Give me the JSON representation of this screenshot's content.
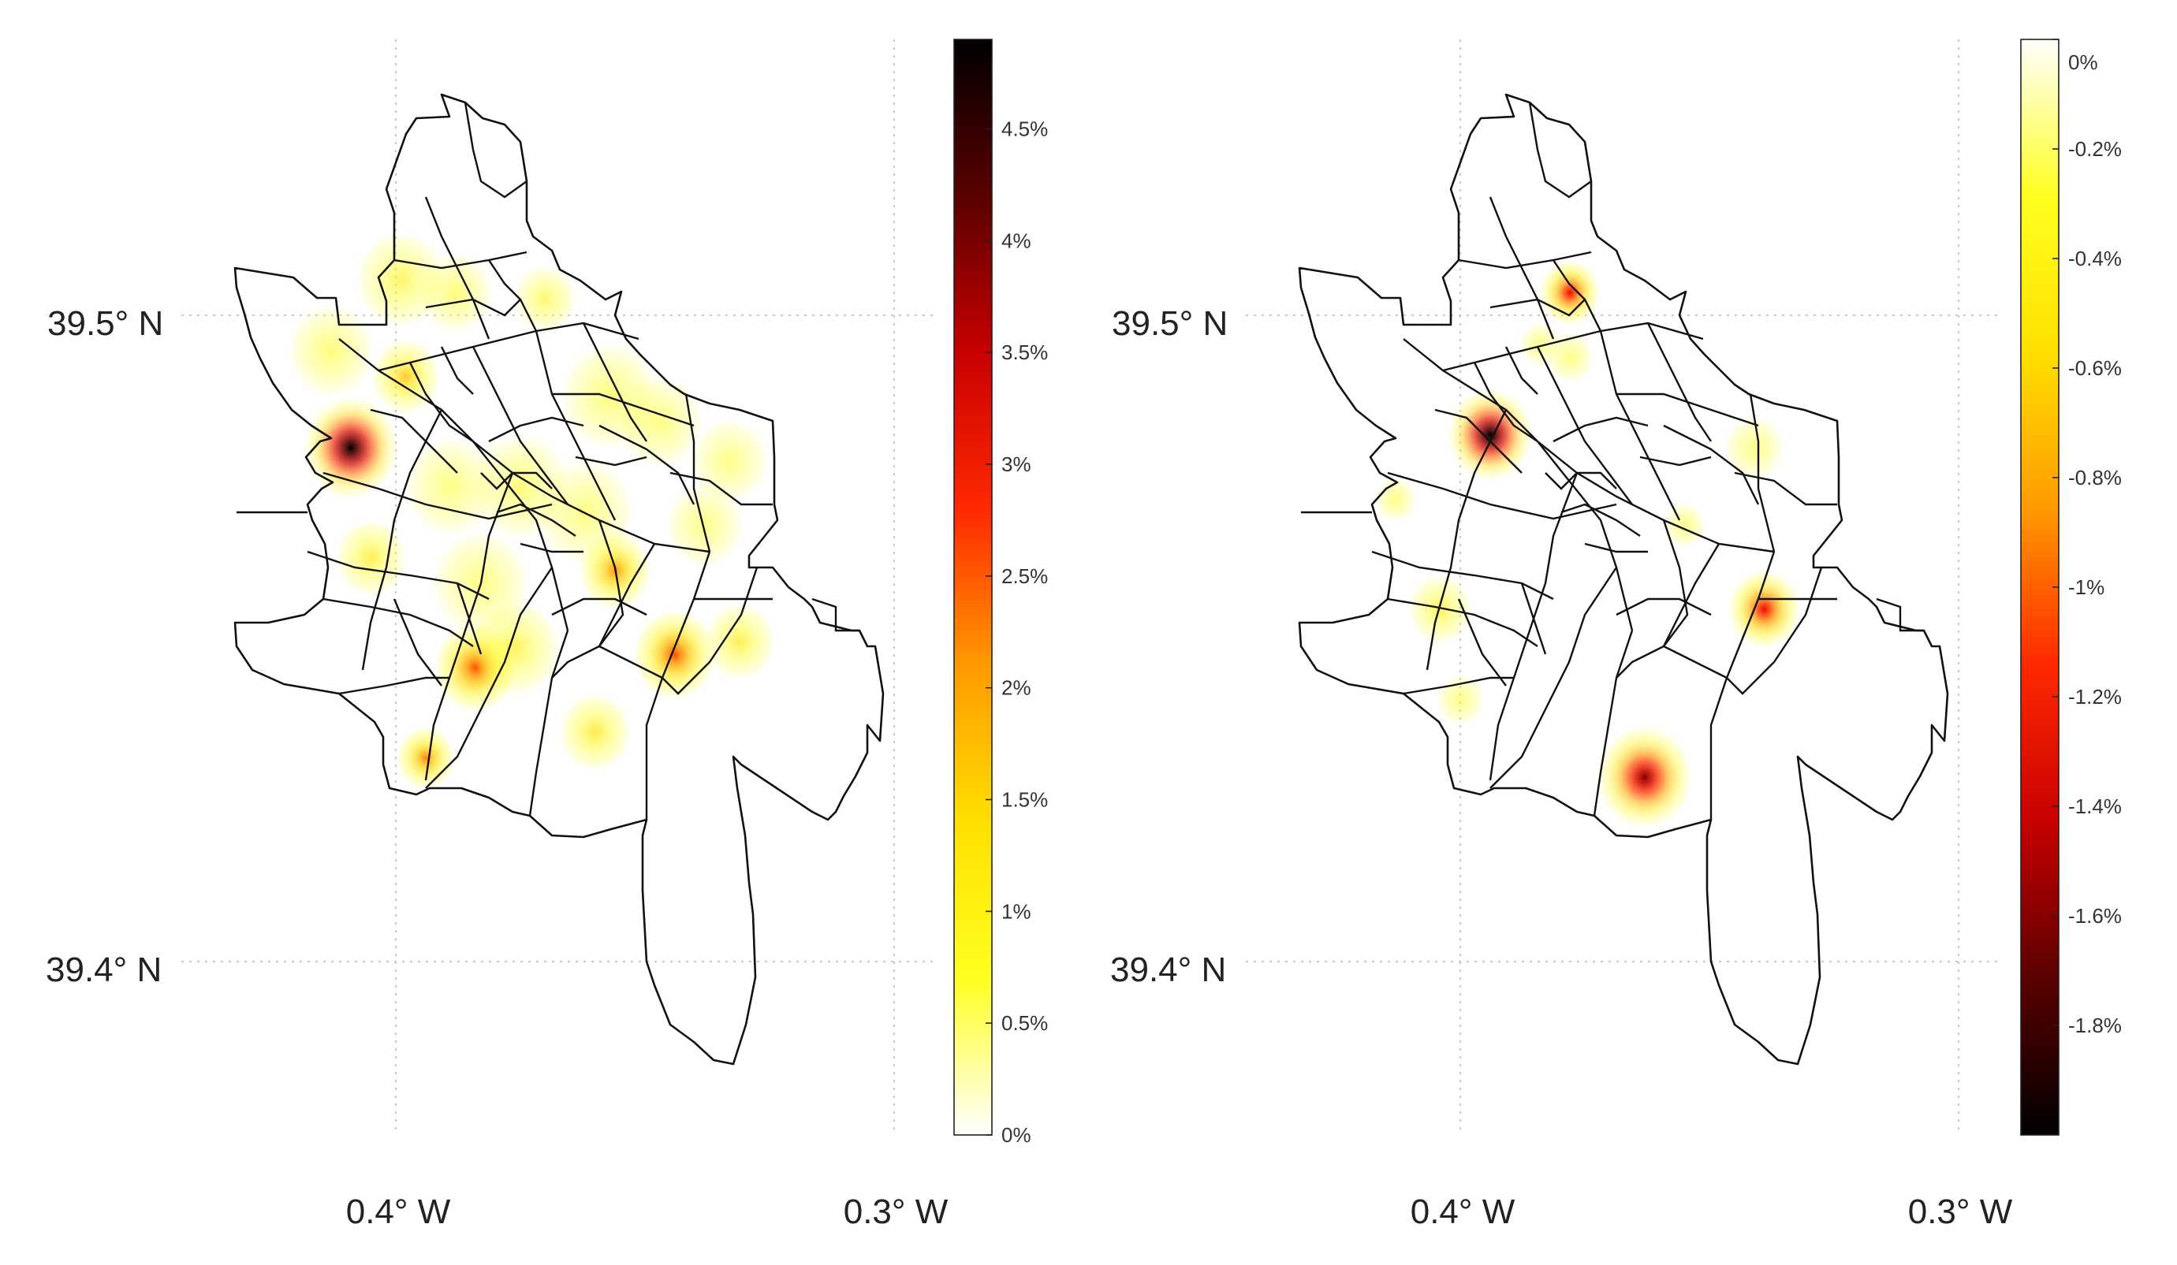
{
  "maps": [
    {
      "id": "left",
      "lat_labels": [
        "39.5° N",
        "39.4° N"
      ],
      "lon_labels": [
        "0.4° W",
        "0.3° W"
      ],
      "colorbar": {
        "scheme": "hot-ascending",
        "min": 0,
        "max": 4.9,
        "tick_values": [
          0,
          0.5,
          1,
          1.5,
          2,
          2.5,
          3,
          3.5,
          4,
          4.5
        ],
        "tick_labels": [
          "0%",
          "0.5%",
          "1%",
          "1.5%",
          "2%",
          "2.5%",
          "3%",
          "3.5%",
          "4%",
          "4.5%"
        ],
        "colors": [
          "#ffffff",
          "#ffff20",
          "#ffe000",
          "#ff9a00",
          "#ff2800",
          "#c80000",
          "#5a0000",
          "#000000"
        ]
      },
      "hotspots": [
        {
          "lon": -0.409,
          "lat": 39.4795,
          "value": 4.9,
          "spread": 1.0
        },
        {
          "lon": -0.398,
          "lat": 39.4905,
          "value": 1.8,
          "spread": 1.0
        },
        {
          "lon": -0.384,
          "lat": 39.4455,
          "value": 2.6,
          "spread": 1.1
        },
        {
          "lon": -0.344,
          "lat": 39.4475,
          "value": 2.6,
          "spread": 1.1
        },
        {
          "lon": -0.356,
          "lat": 39.4605,
          "value": 2.2,
          "spread": 1.0
        },
        {
          "lon": -0.394,
          "lat": 39.4315,
          "value": 2.3,
          "spread": 0.8
        },
        {
          "lon": -0.36,
          "lat": 39.4355,
          "value": 1.4,
          "spread": 1.1
        },
        {
          "lon": -0.376,
          "lat": 39.4485,
          "value": 1.2,
          "spread": 1.4
        },
        {
          "lon": -0.331,
          "lat": 39.4495,
          "value": 1.3,
          "spread": 1.1
        },
        {
          "lon": -0.405,
          "lat": 39.4625,
          "value": 1.3,
          "spread": 1.1
        },
        {
          "lon": -0.399,
          "lat": 39.5055,
          "value": 1.1,
          "spread": 1.4
        },
        {
          "lon": -0.388,
          "lat": 39.5035,
          "value": 0.9,
          "spread": 1.2
        },
        {
          "lon": -0.37,
          "lat": 39.5025,
          "value": 1.0,
          "spread": 1.0
        },
        {
          "lon": -0.357,
          "lat": 39.4875,
          "value": 0.9,
          "spread": 1.6
        },
        {
          "lon": -0.347,
          "lat": 39.4835,
          "value": 0.8,
          "spread": 1.4
        },
        {
          "lon": -0.375,
          "lat": 39.4735,
          "value": 0.9,
          "spread": 1.6
        },
        {
          "lon": -0.362,
          "lat": 39.4695,
          "value": 0.8,
          "spread": 1.6
        },
        {
          "lon": -0.333,
          "lat": 39.4775,
          "value": 0.7,
          "spread": 1.3
        },
        {
          "lon": -0.389,
          "lat": 39.4735,
          "value": 0.8,
          "spread": 1.5
        },
        {
          "lon": -0.413,
          "lat": 39.4945,
          "value": 0.9,
          "spread": 1.4
        },
        {
          "lon": -0.383,
          "lat": 39.4585,
          "value": 0.8,
          "spread": 1.6
        },
        {
          "lon": -0.338,
          "lat": 39.4675,
          "value": 0.7,
          "spread": 1.3
        }
      ]
    },
    {
      "id": "right",
      "lat_labels": [
        "39.5° N",
        "39.4° N"
      ],
      "lon_labels": [
        "0.4° W",
        "0.3° W"
      ],
      "colorbar": {
        "scheme": "hot-descending",
        "min": -2.0,
        "max": 0,
        "tick_values": [
          0,
          -0.2,
          -0.4,
          -0.6,
          -0.8,
          -1.0,
          -1.2,
          -1.4,
          -1.6,
          -1.8
        ],
        "tick_labels": [
          "0%",
          "-0.2%",
          "-0.4%",
          "-0.6%",
          "-0.8%",
          "-1%",
          "-1.2%",
          "-1.4%",
          "-1.6%",
          "-1.8%"
        ],
        "colors": [
          "#ffffff",
          "#ffff20",
          "#ffe000",
          "#ff9a00",
          "#ff2800",
          "#c80000",
          "#5a0000",
          "#000000"
        ]
      },
      "hotspots": [
        {
          "lon": -0.394,
          "lat": 39.4815,
          "value": 2.0,
          "spread": 0.9
        },
        {
          "lon": -0.378,
          "lat": 39.5035,
          "value": 1.3,
          "spread": 0.75
        },
        {
          "lon": -0.363,
          "lat": 39.4285,
          "value": 1.6,
          "spread": 1.1
        },
        {
          "lon": -0.339,
          "lat": 39.4545,
          "value": 1.3,
          "spread": 0.9
        },
        {
          "lon": -0.404,
          "lat": 39.4545,
          "value": 0.5,
          "spread": 1.0
        },
        {
          "lon": -0.341,
          "lat": 39.4795,
          "value": 0.3,
          "spread": 1.0
        },
        {
          "lon": -0.378,
          "lat": 39.4935,
          "value": 0.3,
          "spread": 0.8
        },
        {
          "lon": -0.413,
          "lat": 39.4715,
          "value": 0.3,
          "spread": 0.7
        },
        {
          "lon": -0.4,
          "lat": 39.4405,
          "value": 0.3,
          "spread": 0.8
        },
        {
          "lon": -0.355,
          "lat": 39.4675,
          "value": 0.3,
          "spread": 0.7
        },
        {
          "lon": -0.384,
          "lat": 39.4955,
          "value": 0.25,
          "spread": 0.7
        }
      ]
    }
  ]
}
